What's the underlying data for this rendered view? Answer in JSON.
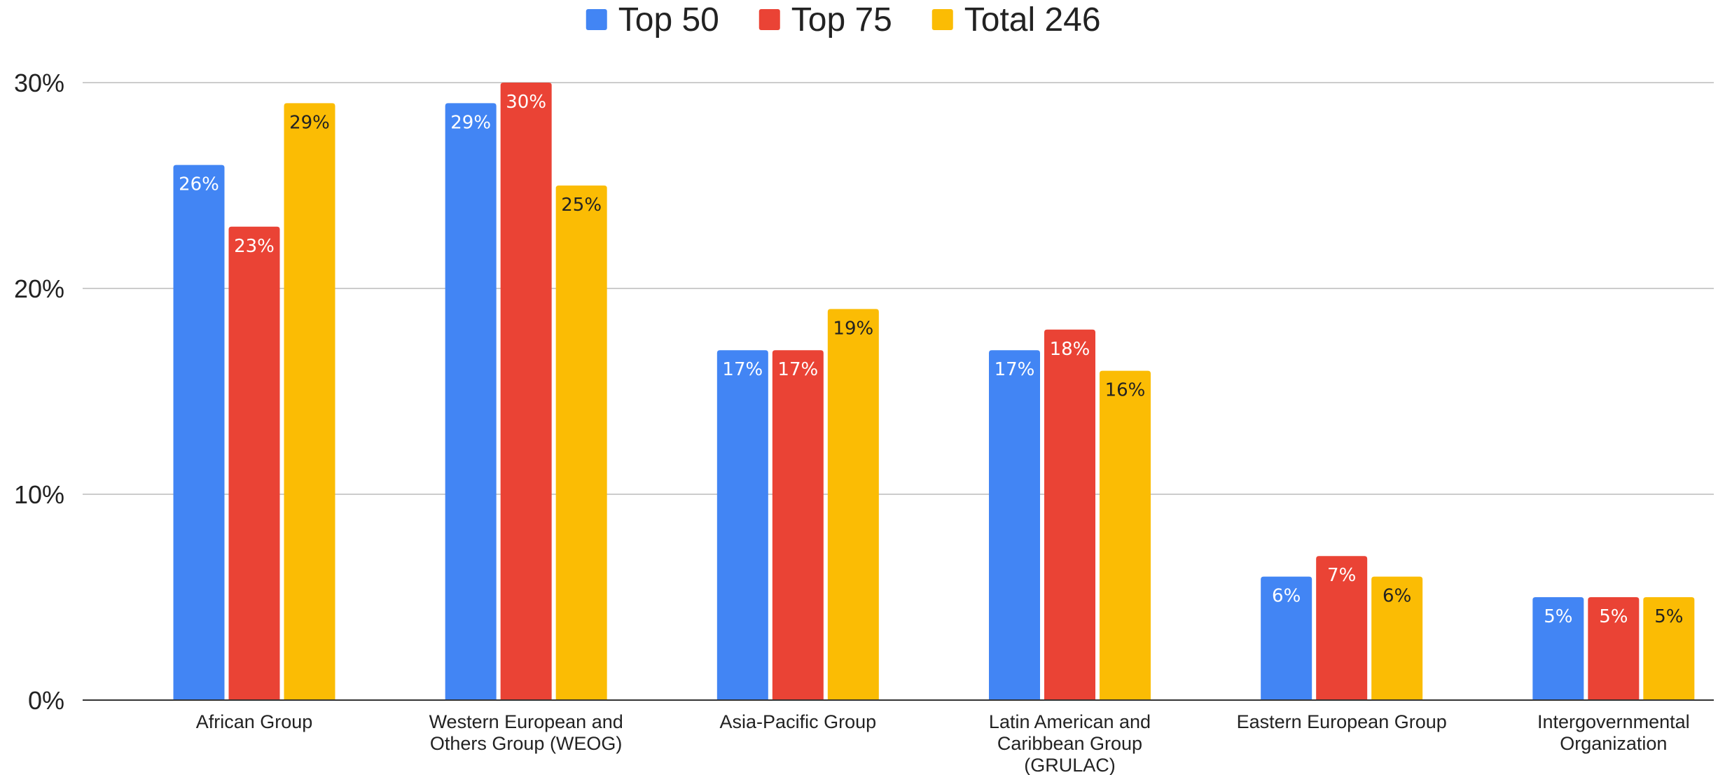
{
  "chart_data": {
    "type": "bar",
    "categories": [
      [
        "African Group"
      ],
      [
        "Western European and",
        "Others Group (WEOG)"
      ],
      [
        "Asia-Pacific Group"
      ],
      [
        "Latin American and",
        "Caribbean Group",
        "(GRULAC)"
      ],
      [
        "Eastern European Group"
      ],
      [
        "Intergovernmental",
        "Organization"
      ]
    ],
    "series": [
      {
        "name": "Top 50",
        "color": "#4285F4",
        "label_color": "#ffffff",
        "values": [
          26,
          29,
          17,
          17,
          6,
          5
        ],
        "labels": [
          "26%",
          "29%",
          "17%",
          "17%",
          "6%",
          "5%"
        ]
      },
      {
        "name": "Top 75",
        "color": "#EA4335",
        "label_color": "#ffffff",
        "values": [
          23,
          30,
          17,
          18,
          7,
          5
        ],
        "labels": [
          "23%",
          "30%",
          "17%",
          "18%",
          "7%",
          "5%"
        ]
      },
      {
        "name": "Total 246",
        "color": "#FBBC04",
        "label_color": "#222222",
        "values": [
          29,
          25,
          19,
          16,
          6,
          5
        ],
        "labels": [
          "29%",
          "25%",
          "19%",
          "16%",
          "6%",
          "5%"
        ]
      }
    ],
    "ylim": [
      0,
      30
    ],
    "yticks": [
      0,
      10,
      20,
      30
    ],
    "ytick_labels": [
      "0%",
      "10%",
      "20%",
      "30%"
    ],
    "grid": true,
    "legend_position": "top-center",
    "axis_color": "#333333",
    "grid_color": "#cccccc"
  }
}
